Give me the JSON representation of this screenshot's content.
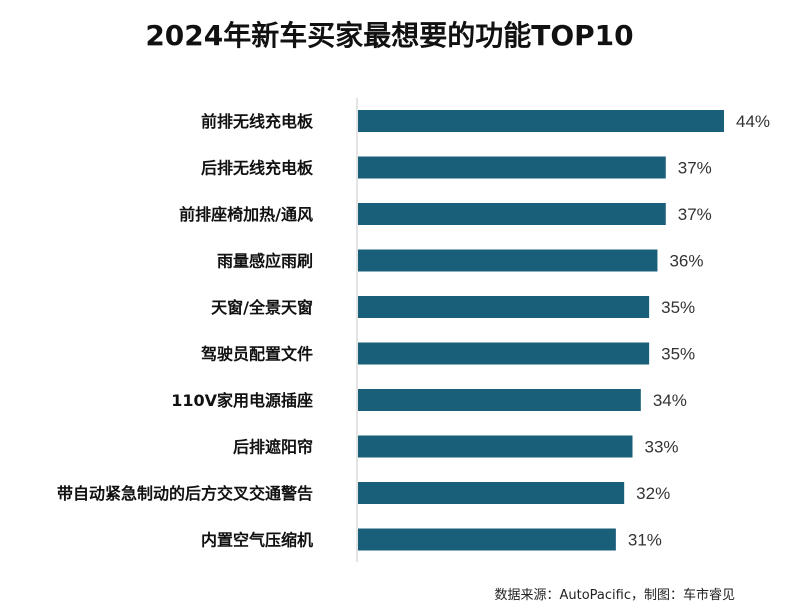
{
  "chart_data": {
    "type": "bar",
    "orientation": "horizontal",
    "title": "2024年新车买家最想要的功能TOP10",
    "categories": [
      "前排无线充电板",
      "后排无线充电板",
      "前排座椅加热/通风",
      "雨量感应雨刷",
      "天窗/全景天窗",
      "驾驶员配置文件",
      "110V家用电源插座",
      "后排遮阳帘",
      "带自动紧急制动的后方交叉交通警告",
      "内置空气压缩机"
    ],
    "values": [
      44,
      37,
      37,
      36,
      35,
      35,
      34,
      33,
      32,
      31
    ],
    "value_labels": [
      "44%",
      "37%",
      "37%",
      "36%",
      "35%",
      "35%",
      "34%",
      "33%",
      "32%",
      "31%"
    ],
    "unit": "%",
    "xlim": [
      0,
      44
    ],
    "bar_color": "#1a5f7a",
    "grid": false,
    "legend": "none"
  },
  "source_note": "数据来源：AutoPacific，制图：车市睿见"
}
